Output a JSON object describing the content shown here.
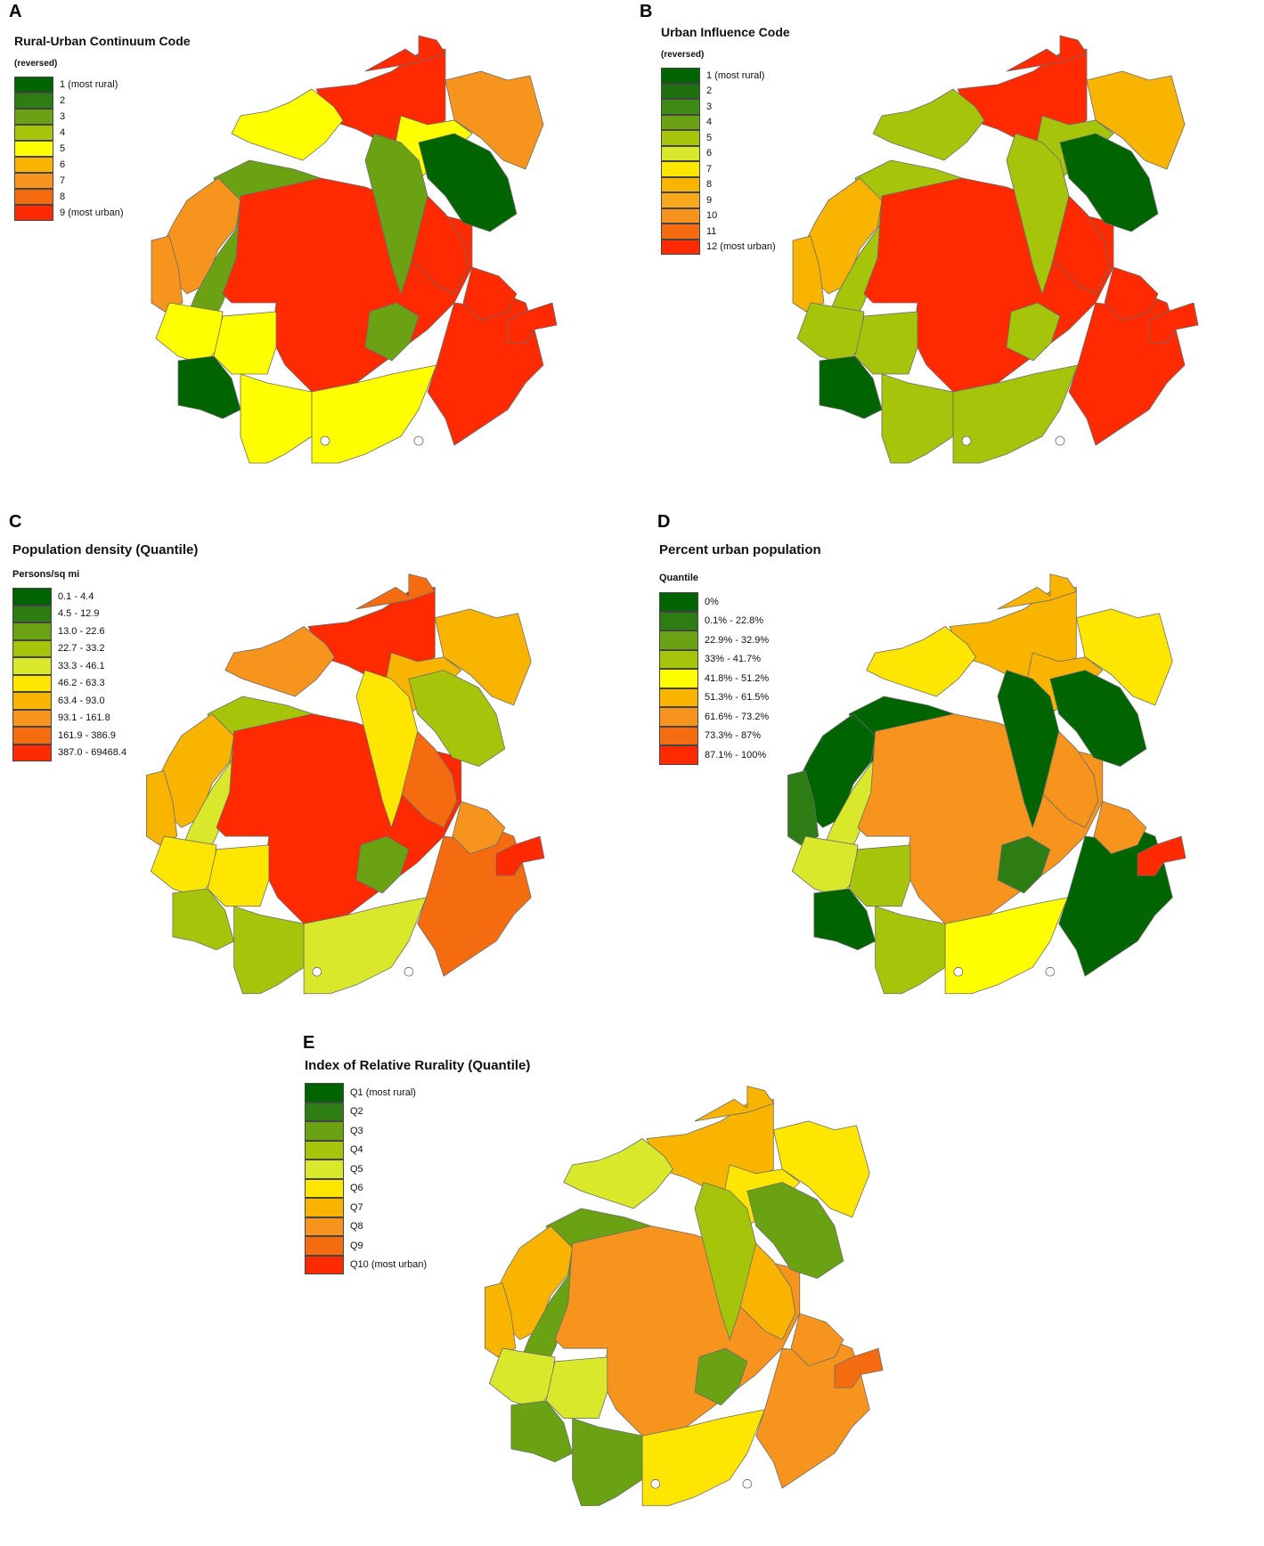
{
  "colors": {
    "dark_green": "#006400",
    "green2": "#2e7d14",
    "green3": "#6aa214",
    "yellow_green": "#a6c40a",
    "light_yellow_green": "#d9e82a",
    "yellow": "#ffff00",
    "gold": "#ffd000",
    "light_orange": "#f9b400",
    "orange": "#f7941d",
    "dark_orange": "#f56c10",
    "red": "#ff2a00"
  },
  "panels": [
    {
      "letter": "A",
      "title": "Rural-Urban Continuum Code",
      "subtitle": "(reversed)",
      "legend": [
        {
          "label": "1 (most rural)",
          "color": "#006400"
        },
        {
          "label": "2",
          "color": "#2e7d14"
        },
        {
          "label": "3",
          "color": "#6aa214"
        },
        {
          "label": "4",
          "color": "#a6c40a"
        },
        {
          "label": "5",
          "color": "#ffff00"
        },
        {
          "label": "6",
          "color": "#f9b400"
        },
        {
          "label": "7",
          "color": "#f7941d"
        },
        {
          "label": "8",
          "color": "#f56c10"
        },
        {
          "label": "9 (most urban)",
          "color": "#ff2a00"
        }
      ]
    },
    {
      "letter": "B",
      "title": "Urban Influence Code",
      "subtitle": "(reversed)",
      "legend": [
        {
          "label": "1 (most rural)",
          "color": "#006400"
        },
        {
          "label": "2",
          "color": "#1f7010"
        },
        {
          "label": "3",
          "color": "#3f8a14"
        },
        {
          "label": "4",
          "color": "#6aa214"
        },
        {
          "label": "5",
          "color": "#a6c40a"
        },
        {
          "label": "6",
          "color": "#d9e82a"
        },
        {
          "label": "7",
          "color": "#ffe600"
        },
        {
          "label": "8",
          "color": "#f9b400"
        },
        {
          "label": "9",
          "color": "#f7a81d"
        },
        {
          "label": "10",
          "color": "#f7941d"
        },
        {
          "label": "11",
          "color": "#f56c10"
        },
        {
          "label": "12 (most urban)",
          "color": "#ff2a00"
        }
      ]
    },
    {
      "letter": "C",
      "title": "Population density (Quantile)",
      "subtitle": "Persons/sq mi",
      "legend": [
        {
          "label": "0.1 - 4.4",
          "color": "#006400"
        },
        {
          "label": "4.5 - 12.9",
          "color": "#2e7d14"
        },
        {
          "label": "13.0 - 22.6",
          "color": "#6aa214"
        },
        {
          "label": "22.7 - 33.2",
          "color": "#a6c40a"
        },
        {
          "label": "33.3 - 46.1",
          "color": "#d9e82a"
        },
        {
          "label": "46.2 - 63.3",
          "color": "#ffe600"
        },
        {
          "label": "63.4 - 93.0",
          "color": "#f9b400"
        },
        {
          "label": "93.1 - 161.8",
          "color": "#f7941d"
        },
        {
          "label": "161.9 - 386.9",
          "color": "#f56c10"
        },
        {
          "label": "387.0 - 69468.4",
          "color": "#ff2a00"
        }
      ]
    },
    {
      "letter": "D",
      "title": "Percent urban population",
      "subtitle": "Quantile",
      "legend": [
        {
          "label": "0%",
          "color": "#006400"
        },
        {
          "label": "0.1% - 22.8%",
          "color": "#2e7d14"
        },
        {
          "label": "22.9% - 32.9%",
          "color": "#6aa214"
        },
        {
          "label": "33% - 41.7%",
          "color": "#a6c40a"
        },
        {
          "label": "41.8% - 51.2%",
          "color": "#ffff00"
        },
        {
          "label": "51.3% - 61.5%",
          "color": "#f9b400"
        },
        {
          "label": "61.6% - 73.2%",
          "color": "#f7941d"
        },
        {
          "label": "73.3% - 87%",
          "color": "#f56c10"
        },
        {
          "label": "87.1% - 100%",
          "color": "#ff2a00"
        }
      ]
    },
    {
      "letter": "E",
      "title": "Index of Relative Rurality (Quantile)",
      "subtitle": "",
      "legend": [
        {
          "label": "Q1 (most rural)",
          "color": "#006400"
        },
        {
          "label": "Q2",
          "color": "#2e7d14"
        },
        {
          "label": "Q3",
          "color": "#6aa214"
        },
        {
          "label": "Q4",
          "color": "#a6c40a"
        },
        {
          "label": "Q5",
          "color": "#d9e82a"
        },
        {
          "label": "Q6",
          "color": "#ffe600"
        },
        {
          "label": "Q7",
          "color": "#f9b400"
        },
        {
          "label": "Q8",
          "color": "#f7941d"
        },
        {
          "label": "Q9",
          "color": "#f56c10"
        },
        {
          "label": "Q10 (most urban)",
          "color": "#ff2a00"
        }
      ]
    }
  ],
  "map_fills": {
    "A": [
      "#ff2a00",
      "#ff2a00",
      "#f7941d",
      "#ffff00",
      "#6aa214",
      "#f7941d",
      "#f7941d",
      "#6aa214",
      "#ff2a00",
      "#ffff00",
      "#ffff00",
      "#006400",
      "#ffff00",
      "#ffff00",
      "#ff2a00",
      "#6aa214",
      "#ff2a00",
      "#ffff00",
      "#006400",
      "#6aa214",
      "#ff2a00",
      "#ff2a00"
    ],
    "B": [
      "#ff2a00",
      "#ff2a00",
      "#f9b400",
      "#a6c40a",
      "#a6c40a",
      "#f9b400",
      "#f9b400",
      "#a6c40a",
      "#ff2a00",
      "#a6c40a",
      "#a6c40a",
      "#006400",
      "#a6c40a",
      "#a6c40a",
      "#ff2a00",
      "#a6c40a",
      "#ff2a00",
      "#a6c40a",
      "#006400",
      "#a6c40a",
      "#ff2a00",
      "#ff2a00"
    ],
    "C": [
      "#ff2a00",
      "#f56c10",
      "#f9b400",
      "#f7941d",
      "#a6c40a",
      "#f9b400",
      "#f9b400",
      "#d9e82a",
      "#ff2a00",
      "#ffe600",
      "#ffe600",
      "#a6c40a",
      "#a6c40a",
      "#d9e82a",
      "#f56c10",
      "#6aa214",
      "#f56c10",
      "#f9b400",
      "#a6c40a",
      "#ffe600",
      "#f7941d",
      "#ff2a00"
    ],
    "D": [
      "#f9b400",
      "#f9b400",
      "#ffe600",
      "#ffe600",
      "#006400",
      "#006400",
      "#2e7d14",
      "#d9e82a",
      "#f7941d",
      "#d9e82a",
      "#a6c40a",
      "#006400",
      "#a6c40a",
      "#ffff00",
      "#006400",
      "#2e7d14",
      "#f7941d",
      "#f9b400",
      "#006400",
      "#006400",
      "#f7941d",
      "#ff2a00"
    ],
    "E": [
      "#f9b400",
      "#f9b400",
      "#ffe600",
      "#d9e82a",
      "#6aa214",
      "#f9b400",
      "#f9b400",
      "#6aa214",
      "#f7941d",
      "#d9e82a",
      "#d9e82a",
      "#6aa214",
      "#6aa214",
      "#ffe600",
      "#f7941d",
      "#6aa214",
      "#f9b400",
      "#ffe600",
      "#6aa214",
      "#a6c40a",
      "#f7941d",
      "#f56c10"
    ]
  }
}
